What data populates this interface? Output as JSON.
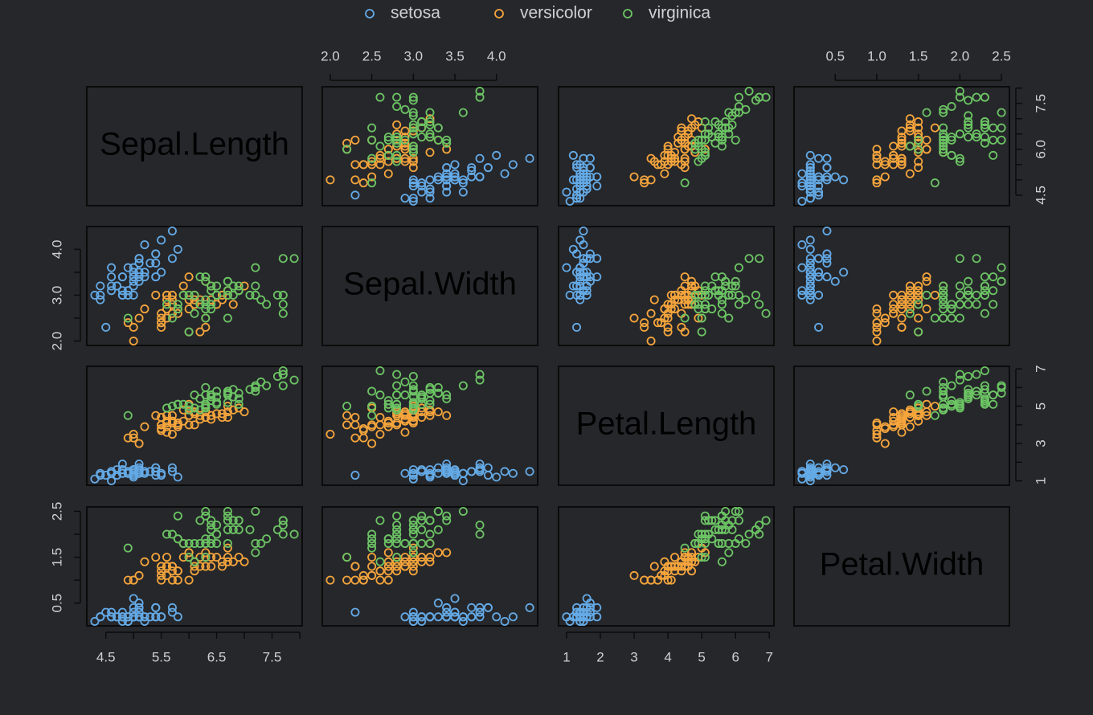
{
  "chart_data": {
    "type": "scatter_matrix",
    "legend": "top",
    "variables": [
      {
        "name": "Sepal.Length",
        "lim": [
          4.156,
          8.044
        ],
        "ticks": [
          4.5,
          5,
          5.5,
          6,
          6.5,
          7,
          7.5,
          8
        ],
        "xticks": [
          4.5,
          5.5,
          6.5,
          7.5
        ],
        "yticks": [
          4.5,
          {
            "value": 6,
            "label": "6.0"
          },
          7.5
        ]
      },
      {
        "name": "Sepal.Width",
        "lim": [
          1.904,
          4.496
        ],
        "ticks": [
          2,
          2.5,
          3,
          3.5,
          4
        ],
        "xticks": [
          {
            "value": 2,
            "label": "2.0"
          },
          2.5,
          {
            "value": 3,
            "label": "3.0"
          },
          3.5,
          {
            "value": 4,
            "label": "4.0"
          }
        ],
        "yticks": [
          {
            "value": 2,
            "label": "2.0"
          },
          {
            "value": 3,
            "label": "3.0"
          },
          {
            "value": 4,
            "label": "4.0"
          }
        ]
      },
      {
        "name": "Petal.Length",
        "lim": [
          0.764,
          7.136
        ],
        "ticks": [
          1,
          2,
          3,
          4,
          5,
          6,
          7
        ],
        "xticks": [
          1,
          2,
          3,
          4,
          5,
          6,
          7
        ],
        "yticks": [
          1,
          3,
          5,
          7
        ]
      },
      {
        "name": "Petal.Width",
        "lim": [
          0.004,
          2.596
        ],
        "ticks": [
          0.5,
          1,
          1.5,
          2,
          2.5
        ],
        "xticks": [
          0.5,
          {
            "value": 1,
            "label": "1.0"
          },
          1.5,
          {
            "value": 2,
            "label": "2.0"
          },
          2.5
        ],
        "yticks": [
          0.5,
          1.5,
          2.5
        ]
      }
    ],
    "series": [
      {
        "name": "setosa",
        "color": "#64aae6",
        "values": [
          [
            5.1,
            4.9,
            4.7,
            4.6,
            5.0,
            5.4,
            4.6,
            5.0,
            4.4,
            4.9,
            5.4,
            4.8,
            4.8,
            4.3,
            5.8,
            5.7,
            5.4,
            5.1,
            5.7,
            5.1,
            5.4,
            5.1,
            4.6,
            5.1,
            4.8,
            5.0,
            5.0,
            5.2,
            5.2,
            4.7,
            4.8,
            5.4,
            5.2,
            5.5,
            4.9,
            5.0,
            5.5,
            4.9,
            4.4,
            5.1,
            5.0,
            4.5,
            4.4,
            5.0,
            5.1,
            4.8,
            5.1,
            4.6,
            5.3,
            5.0
          ],
          [
            3.5,
            3.0,
            3.2,
            3.1,
            3.6,
            3.9,
            3.4,
            3.4,
            2.9,
            3.1,
            3.7,
            3.4,
            3.0,
            3.0,
            4.0,
            4.4,
            3.9,
            3.5,
            3.8,
            3.8,
            3.4,
            3.7,
            3.6,
            3.3,
            3.4,
            3.0,
            3.4,
            3.5,
            3.4,
            3.2,
            3.1,
            3.4,
            4.1,
            4.2,
            3.1,
            3.2,
            3.5,
            3.6,
            3.0,
            3.4,
            3.5,
            2.3,
            3.2,
            3.5,
            3.8,
            3.0,
            3.8,
            3.2,
            3.7,
            3.3
          ],
          [
            1.4,
            1.4,
            1.3,
            1.5,
            1.4,
            1.7,
            1.4,
            1.5,
            1.4,
            1.5,
            1.5,
            1.6,
            1.4,
            1.1,
            1.2,
            1.5,
            1.3,
            1.4,
            1.7,
            1.5,
            1.7,
            1.5,
            1.0,
            1.7,
            1.9,
            1.6,
            1.6,
            1.5,
            1.4,
            1.6,
            1.6,
            1.5,
            1.5,
            1.4,
            1.5,
            1.2,
            1.3,
            1.4,
            1.3,
            1.5,
            1.3,
            1.3,
            1.3,
            1.6,
            1.9,
            1.4,
            1.6,
            1.4,
            1.5,
            1.4
          ],
          [
            0.2,
            0.2,
            0.2,
            0.2,
            0.2,
            0.4,
            0.3,
            0.2,
            0.2,
            0.1,
            0.2,
            0.2,
            0.1,
            0.1,
            0.2,
            0.4,
            0.4,
            0.3,
            0.3,
            0.3,
            0.2,
            0.4,
            0.2,
            0.5,
            0.2,
            0.2,
            0.4,
            0.2,
            0.2,
            0.2,
            0.2,
            0.4,
            0.1,
            0.2,
            0.2,
            0.2,
            0.2,
            0.1,
            0.2,
            0.2,
            0.3,
            0.3,
            0.2,
            0.6,
            0.4,
            0.3,
            0.2,
            0.2,
            0.2,
            0.2
          ]
        ]
      },
      {
        "name": "versicolor",
        "color": "#f5a53c",
        "values": [
          [
            7.0,
            6.4,
            6.9,
            5.5,
            6.5,
            5.7,
            6.3,
            4.9,
            6.6,
            5.2,
            5.0,
            5.9,
            6.0,
            6.1,
            5.6,
            6.7,
            5.6,
            5.8,
            6.2,
            5.6,
            5.9,
            6.1,
            6.3,
            6.1,
            6.4,
            6.6,
            6.8,
            6.7,
            6.0,
            5.7,
            5.5,
            5.5,
            5.8,
            6.0,
            5.4,
            6.0,
            6.7,
            6.3,
            5.6,
            5.5,
            5.5,
            6.1,
            5.8,
            5.0,
            5.6,
            5.7,
            5.7,
            6.2,
            5.1,
            5.7
          ],
          [
            3.2,
            3.2,
            3.1,
            2.3,
            2.8,
            2.8,
            3.3,
            2.4,
            2.9,
            2.7,
            2.0,
            3.0,
            2.2,
            2.9,
            2.9,
            3.1,
            3.0,
            2.7,
            2.2,
            2.5,
            3.2,
            2.8,
            2.5,
            2.8,
            2.9,
            3.0,
            2.8,
            3.0,
            2.9,
            2.6,
            2.4,
            2.4,
            2.7,
            2.7,
            3.0,
            3.4,
            3.1,
            2.3,
            3.0,
            2.5,
            2.6,
            3.0,
            2.6,
            2.3,
            2.7,
            3.0,
            2.9,
            2.9,
            2.5,
            2.8
          ],
          [
            4.7,
            4.5,
            4.9,
            4.0,
            4.6,
            4.5,
            4.7,
            3.3,
            4.6,
            3.9,
            3.5,
            4.2,
            4.0,
            4.7,
            3.6,
            4.4,
            4.5,
            4.1,
            4.5,
            3.9,
            4.8,
            4.0,
            4.9,
            4.7,
            4.3,
            4.4,
            4.8,
            5.0,
            4.5,
            3.5,
            3.8,
            3.7,
            3.9,
            5.1,
            4.5,
            4.5,
            4.7,
            4.4,
            4.1,
            4.0,
            4.4,
            4.6,
            4.0,
            3.3,
            4.2,
            4.2,
            4.2,
            4.3,
            3.0,
            4.1
          ],
          [
            1.4,
            1.5,
            1.5,
            1.3,
            1.5,
            1.3,
            1.6,
            1.0,
            1.3,
            1.4,
            1.0,
            1.5,
            1.0,
            1.4,
            1.3,
            1.4,
            1.5,
            1.0,
            1.5,
            1.1,
            1.8,
            1.3,
            1.5,
            1.2,
            1.3,
            1.4,
            1.4,
            1.7,
            1.5,
            1.0,
            1.1,
            1.0,
            1.2,
            1.6,
            1.5,
            1.6,
            1.5,
            1.3,
            1.3,
            1.3,
            1.2,
            1.4,
            1.2,
            1.0,
            1.3,
            1.2,
            1.3,
            1.3,
            1.1,
            1.3
          ]
        ]
      },
      {
        "name": "virginica",
        "color": "#6cc464",
        "values": [
          [
            6.3,
            5.8,
            7.1,
            6.3,
            6.5,
            7.6,
            4.9,
            7.3,
            6.7,
            7.2,
            6.5,
            6.4,
            6.8,
            5.7,
            5.8,
            6.4,
            6.5,
            7.7,
            7.7,
            6.0,
            6.9,
            5.6,
            7.7,
            6.3,
            6.7,
            7.2,
            6.2,
            6.1,
            6.4,
            7.2,
            7.4,
            7.9,
            6.4,
            6.3,
            6.1,
            7.7,
            6.3,
            6.4,
            6.0,
            6.9,
            6.7,
            6.9,
            5.8,
            6.8,
            6.7,
            6.7,
            6.3,
            6.5,
            6.2,
            5.9
          ],
          [
            3.3,
            2.7,
            3.0,
            2.9,
            3.0,
            3.0,
            2.5,
            2.9,
            2.5,
            3.6,
            3.2,
            2.7,
            3.0,
            2.5,
            2.8,
            3.2,
            3.0,
            3.8,
            2.6,
            2.2,
            3.2,
            2.8,
            2.8,
            2.7,
            3.3,
            3.2,
            2.8,
            3.0,
            2.8,
            3.0,
            2.8,
            3.8,
            2.8,
            2.8,
            2.6,
            3.0,
            3.4,
            3.1,
            3.0,
            3.1,
            3.1,
            3.1,
            2.7,
            3.2,
            3.3,
            3.0,
            2.5,
            3.0,
            3.4,
            3.0
          ],
          [
            6.0,
            5.1,
            5.9,
            5.6,
            5.8,
            6.6,
            4.5,
            6.3,
            5.8,
            6.1,
            5.1,
            5.3,
            5.5,
            5.0,
            5.1,
            5.3,
            5.5,
            6.7,
            6.9,
            5.0,
            5.7,
            4.9,
            6.7,
            4.9,
            5.7,
            6.0,
            4.8,
            4.9,
            5.6,
            5.8,
            6.1,
            6.4,
            5.6,
            5.1,
            5.6,
            6.1,
            5.6,
            5.5,
            4.8,
            5.4,
            5.6,
            5.1,
            5.1,
            5.9,
            5.7,
            5.2,
            5.0,
            5.2,
            5.4,
            5.1
          ],
          [
            2.5,
            1.9,
            2.1,
            1.8,
            2.2,
            2.1,
            1.7,
            1.8,
            1.8,
            2.5,
            2.0,
            1.9,
            2.1,
            2.0,
            2.4,
            2.3,
            1.8,
            2.2,
            2.3,
            1.5,
            2.3,
            2.0,
            2.0,
            1.8,
            2.1,
            1.8,
            1.8,
            1.8,
            2.1,
            1.6,
            1.9,
            2.0,
            2.2,
            1.5,
            1.4,
            2.3,
            2.4,
            1.8,
            1.8,
            2.1,
            2.4,
            2.3,
            1.9,
            2.3,
            2.5,
            2.3,
            1.9,
            2.0,
            2.3,
            1.8
          ]
        ]
      }
    ]
  }
}
